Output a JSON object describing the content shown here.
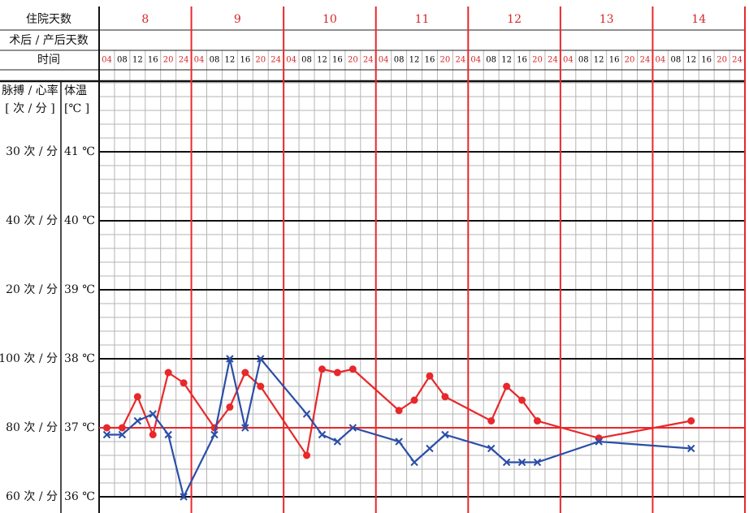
{
  "chart_data": {
    "type": "line",
    "header_labels": [
      "住院天数",
      "术后 / 产后天数",
      "时间"
    ],
    "pulse_axis_label": [
      "脉搏 / 心率",
      "[ 次 / 分 ]"
    ],
    "temp_axis_label": [
      "体温",
      "[℃ ]"
    ],
    "days": [
      "8",
      "9",
      "10",
      "11",
      "12",
      "13",
      "14"
    ],
    "time_labels": [
      "04",
      "08",
      "12",
      "16",
      "20",
      "24"
    ],
    "time_label_colors": [
      "#d62728",
      "#000000",
      "#000000",
      "#000000",
      "#d62728",
      "#d62728"
    ],
    "x": [
      0,
      1,
      2,
      3,
      4,
      5,
      7,
      8,
      9,
      10,
      13,
      14,
      15,
      16,
      19,
      20,
      21,
      22,
      25,
      26,
      27,
      28,
      32,
      38
    ],
    "xlim": [
      -0.5,
      41.5
    ],
    "ylim": [
      36,
      42
    ],
    "yticks": [
      {
        "value": 36,
        "label": "36 ℃"
      },
      {
        "value": 37,
        "label": "37 ℃"
      },
      {
        "value": 38,
        "label": "38 ℃"
      },
      {
        "value": 39,
        "label": "39 ℃"
      },
      {
        "value": 40,
        "label": "40 ℃"
      },
      {
        "value": 41,
        "label": "41 ℃"
      }
    ],
    "pulse_labels": [
      "60 次 / 分",
      "80 次 / 分",
      "100 次 / 分",
      "20 次 / 分",
      "40 次 / 分",
      "30 次 / 分"
    ],
    "reference_line": 37,
    "reference_color": "#e8282b",
    "grid": true,
    "series": [
      {
        "marker": "circle",
        "color": "#e8282b",
        "values": [
          37.0,
          37.0,
          37.45,
          36.9,
          37.8,
          37.65,
          37.0,
          37.3,
          37.8,
          37.6,
          36.6,
          37.85,
          37.8,
          37.85,
          37.25,
          37.4,
          37.75,
          37.45,
          37.1,
          37.6,
          37.4,
          37.1,
          36.85,
          37.1
        ]
      },
      {
        "marker": "cross",
        "color": "#2b4ea8",
        "values": [
          36.9,
          36.9,
          37.1,
          37.2,
          36.9,
          36.0,
          36.9,
          38.0,
          37.0,
          38.0,
          37.2,
          36.9,
          36.8,
          37.0,
          36.8,
          36.5,
          36.7,
          36.9,
          36.7,
          36.5,
          36.5,
          36.5,
          36.8,
          36.7
        ]
      }
    ]
  }
}
